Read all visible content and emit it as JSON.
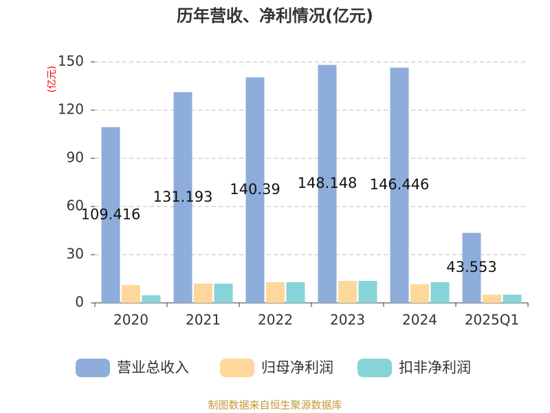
{
  "chart_data": {
    "type": "bar",
    "title": "历年营收、净利情况(亿元)",
    "y_axis_label": "(亿元)",
    "categories": [
      "2020",
      "2021",
      "2022",
      "2023",
      "2024",
      "2025Q1"
    ],
    "series": [
      {
        "name": "营业总收入",
        "color": "#8eaddb",
        "values": [
          109.416,
          131.193,
          140.39,
          148.148,
          146.446,
          43.553
        ]
      },
      {
        "name": "归母净利润",
        "color": "#fdd89a",
        "values": [
          11.1,
          12,
          12.9,
          13.7,
          11.6,
          5.1
        ]
      },
      {
        "name": "扣非净利润",
        "color": "#86d4d8",
        "values": [
          4.7,
          12,
          12.9,
          13.7,
          12.9,
          5.1
        ]
      }
    ],
    "labeled_series": 0,
    "ylim": [
      0,
      150
    ],
    "yticks": [
      0,
      30,
      60,
      90,
      120,
      150
    ],
    "grid": true,
    "source": "制图数据来自恒生聚源数据库"
  }
}
